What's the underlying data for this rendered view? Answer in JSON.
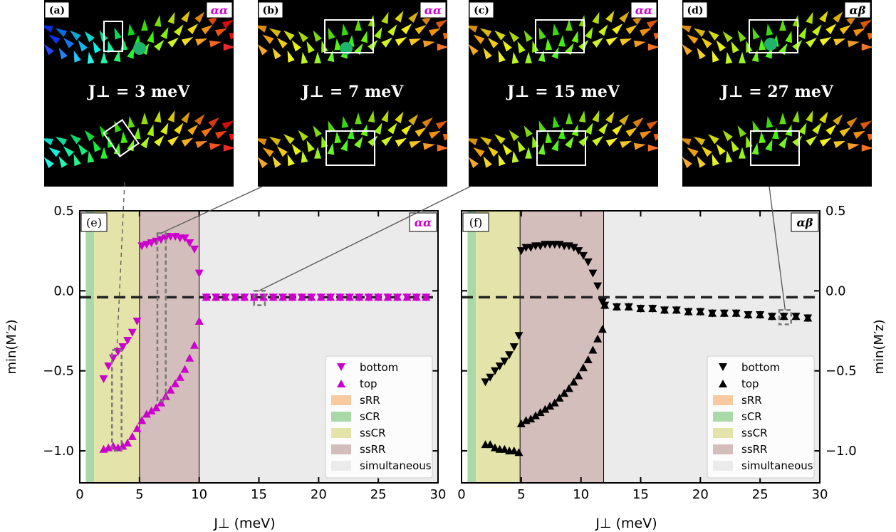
{
  "colors": {
    "alpha_alpha": "#cc00cc",
    "alpha_beta": "#000000",
    "sRR": "#f9c9a0",
    "sCR": "#a9d9a7",
    "ssCR": "#e4e4aa",
    "ssRR": "#d4bebb",
    "simultaneous": "#ebebeb"
  },
  "insets": [
    {
      "tag": "(a)",
      "config": "αα",
      "label": "J⊥ = 3 meV"
    },
    {
      "tag": "(b)",
      "config": "αα",
      "label": "J⊥ = 7 meV"
    },
    {
      "tag": "(c)",
      "config": "αα",
      "label": "J⊥ = 15 meV"
    },
    {
      "tag": "(d)",
      "config": "αβ",
      "label": "J⊥ = 27 meV"
    }
  ],
  "chart_data": [
    {
      "type": "scatter",
      "tag": "(e)",
      "config": "αα",
      "xlabel": "J⊥ (meV)",
      "ylabel": "min(M′z)",
      "xlim": [
        0,
        30
      ],
      "ylim": [
        -1.2,
        0.5
      ],
      "xticks": [
        "0",
        "5",
        "10",
        "15",
        "20",
        "25",
        "30"
      ],
      "yticks": [
        "0.5",
        "0.0",
        "−0.5",
        "−1.0"
      ],
      "dashed_line_y": -0.04,
      "regions": [
        {
          "name": "sCR",
          "from": 0.5,
          "to": 1.2
        },
        {
          "name": "ssCR",
          "from": 1.2,
          "to": 5.0
        },
        {
          "name": "ssRR",
          "from": 5.0,
          "to": 10.0
        },
        {
          "name": "simultaneous",
          "from": 10.0,
          "to": 30.0
        }
      ],
      "legend": [
        "bottom",
        "top",
        "sRR",
        "sCR",
        "ssCR",
        "ssRR",
        "simultaneous"
      ],
      "legend_position": "lower-right",
      "series": [
        {
          "name": "bottom",
          "marker": "triangle-down",
          "x": [
            2.0,
            2.4,
            2.8,
            3.2,
            3.6,
            4.0,
            4.4,
            4.8,
            5.2,
            5.6,
            6.0,
            6.4,
            6.8,
            7.2,
            7.6,
            8.0,
            8.4,
            8.8,
            9.2,
            9.6,
            10.0,
            10.6,
            11.4,
            12.2,
            13.0,
            13.8,
            14.6,
            15.4,
            16.2,
            17.0,
            17.8,
            18.6,
            19.4,
            20.2,
            21.0,
            21.8,
            22.6,
            23.4,
            24.2,
            25.0,
            25.8,
            26.6,
            27.4,
            28.2,
            29.0
          ],
          "y": [
            -0.55,
            -0.47,
            -0.42,
            -0.38,
            -0.35,
            -0.31,
            -0.26,
            -0.19,
            0.28,
            0.29,
            0.3,
            0.31,
            0.32,
            0.33,
            0.34,
            0.34,
            0.33,
            0.33,
            0.3,
            0.26,
            0.11,
            -0.04,
            -0.04,
            -0.04,
            -0.04,
            -0.04,
            -0.04,
            -0.04,
            -0.04,
            -0.04,
            -0.04,
            -0.04,
            -0.04,
            -0.04,
            -0.04,
            -0.04,
            -0.04,
            -0.04,
            -0.04,
            -0.04,
            -0.04,
            -0.04,
            -0.04,
            -0.04,
            -0.04
          ]
        },
        {
          "name": "top",
          "marker": "triangle-up",
          "x": [
            2.0,
            2.4,
            2.8,
            3.2,
            3.6,
            4.0,
            4.4,
            4.8,
            5.2,
            5.6,
            6.0,
            6.4,
            6.8,
            7.2,
            7.6,
            8.0,
            8.4,
            8.8,
            9.2,
            9.6,
            10.0,
            10.6,
            11.4,
            12.2,
            13.0,
            13.8,
            14.6,
            15.4,
            16.2,
            17.0,
            17.8,
            18.6,
            19.4,
            20.2,
            21.0,
            21.8,
            22.6,
            23.4,
            24.2,
            25.0,
            25.8,
            26.6,
            27.4,
            28.2,
            29.0
          ],
          "y": [
            -0.99,
            -0.98,
            -0.97,
            -0.98,
            -0.97,
            -0.95,
            -0.91,
            -0.86,
            -0.81,
            -0.77,
            -0.75,
            -0.73,
            -0.7,
            -0.66,
            -0.62,
            -0.58,
            -0.54,
            -0.49,
            -0.42,
            -0.34,
            -0.19,
            -0.04,
            -0.04,
            -0.04,
            -0.04,
            -0.04,
            -0.04,
            -0.04,
            -0.04,
            -0.04,
            -0.04,
            -0.04,
            -0.04,
            -0.04,
            -0.04,
            -0.04,
            -0.04,
            -0.04,
            -0.04,
            -0.04,
            -0.04,
            -0.04,
            -0.04,
            -0.04,
            -0.04
          ]
        }
      ]
    },
    {
      "type": "scatter",
      "tag": "(f)",
      "config": "αβ",
      "xlabel": "J⊥ (meV)",
      "ylabel": "min(M′z)",
      "xlim": [
        0,
        30
      ],
      "ylim": [
        -1.2,
        0.5
      ],
      "xticks": [
        "0",
        "5",
        "10",
        "15",
        "20",
        "25",
        "30"
      ],
      "yticks": [
        "0.5",
        "0.0",
        "−0.5",
        "−1.0"
      ],
      "dashed_line_y": -0.04,
      "regions": [
        {
          "name": "sCR",
          "from": 0.5,
          "to": 1.2
        },
        {
          "name": "ssCR",
          "from": 1.2,
          "to": 4.9
        },
        {
          "name": "ssRR",
          "from": 4.9,
          "to": 11.9
        },
        {
          "name": "simultaneous",
          "from": 11.9,
          "to": 30.0
        }
      ],
      "legend": [
        "bottom",
        "top",
        "sRR",
        "sCR",
        "ssCR",
        "ssRR",
        "simultaneous"
      ],
      "legend_position": "lower-right",
      "series": [
        {
          "name": "bottom",
          "marker": "triangle-down",
          "x": [
            2.0,
            2.4,
            2.8,
            3.2,
            3.6,
            4.0,
            4.4,
            4.8,
            5.0,
            5.4,
            5.8,
            6.2,
            6.6,
            7.0,
            7.4,
            7.8,
            8.2,
            8.6,
            9.0,
            9.4,
            9.8,
            10.2,
            10.6,
            11.0,
            11.4,
            11.8,
            12.0,
            13.0,
            14.0,
            15.0,
            16.0,
            17.0,
            18.0,
            19.0,
            20.0,
            21.0,
            22.0,
            23.0,
            24.0,
            25.0,
            26.0,
            27.0,
            28.0,
            29.0
          ],
          "y": [
            -0.57,
            -0.54,
            -0.5,
            -0.47,
            -0.44,
            -0.4,
            -0.35,
            -0.28,
            0.25,
            0.27,
            0.27,
            0.28,
            0.28,
            0.29,
            0.29,
            0.29,
            0.29,
            0.28,
            0.28,
            0.27,
            0.25,
            0.22,
            0.18,
            0.11,
            0.03,
            -0.07,
            -0.09,
            -0.1,
            -0.1,
            -0.11,
            -0.11,
            -0.12,
            -0.12,
            -0.13,
            -0.13,
            -0.14,
            -0.14,
            -0.14,
            -0.15,
            -0.15,
            -0.16,
            -0.16,
            -0.16,
            -0.17
          ]
        },
        {
          "name": "top",
          "marker": "triangle-up",
          "x": [
            2.0,
            2.4,
            2.8,
            3.2,
            3.6,
            4.0,
            4.4,
            4.8,
            5.0,
            5.4,
            5.8,
            6.2,
            6.6,
            7.0,
            7.4,
            7.8,
            8.2,
            8.6,
            9.0,
            9.4,
            9.8,
            10.2,
            10.6,
            11.0,
            11.4,
            11.8,
            12.0,
            13.0,
            14.0,
            15.0,
            16.0,
            17.0,
            18.0,
            19.0,
            20.0,
            21.0,
            22.0,
            23.0,
            24.0,
            25.0,
            26.0,
            27.0,
            28.0,
            29.0
          ],
          "y": [
            -0.96,
            -0.96,
            -0.98,
            -0.99,
            -0.99,
            -1.0,
            -1.0,
            -1.01,
            -0.83,
            -0.81,
            -0.8,
            -0.78,
            -0.76,
            -0.74,
            -0.72,
            -0.7,
            -0.67,
            -0.64,
            -0.61,
            -0.57,
            -0.53,
            -0.48,
            -0.43,
            -0.37,
            -0.3,
            -0.24,
            -0.09,
            -0.1,
            -0.1,
            -0.11,
            -0.11,
            -0.12,
            -0.12,
            -0.13,
            -0.13,
            -0.14,
            -0.14,
            -0.14,
            -0.15,
            -0.15,
            -0.16,
            -0.16,
            -0.16,
            -0.17
          ]
        }
      ]
    }
  ]
}
